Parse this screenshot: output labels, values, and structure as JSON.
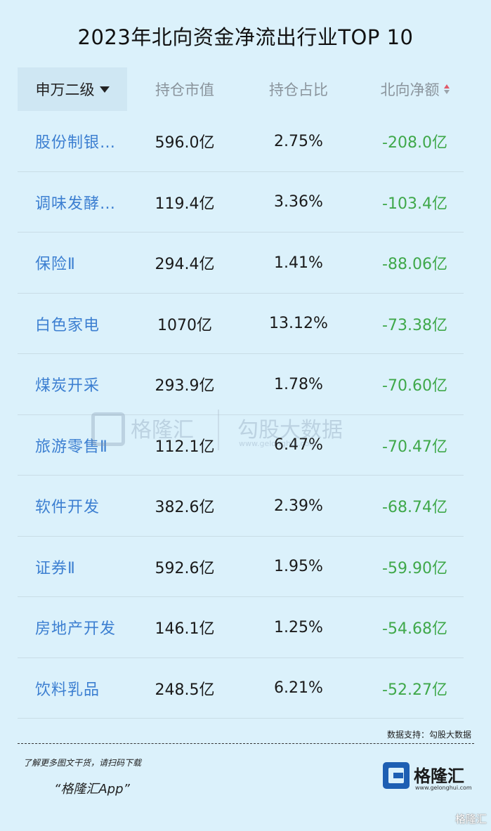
{
  "title": "2023年北向资金净流出行业TOP 10",
  "header": {
    "col1": "申万二级",
    "col2": "持仓市值",
    "col3": "持仓占比",
    "col4": "北向净额"
  },
  "rows": [
    {
      "industry": "股份制银…",
      "value": "596.0亿",
      "ratio": "2.75%",
      "net": "-208.0亿"
    },
    {
      "industry": "调味发酵…",
      "value": "119.4亿",
      "ratio": "3.36%",
      "net": "-103.4亿"
    },
    {
      "industry": "保险Ⅱ",
      "value": "294.4亿",
      "ratio": "1.41%",
      "net": "-88.06亿"
    },
    {
      "industry": "白色家电",
      "value": "1070亿",
      "ratio": "13.12%",
      "net": "-73.38亿"
    },
    {
      "industry": "煤炭开采",
      "value": "293.9亿",
      "ratio": "1.78%",
      "net": "-70.60亿"
    },
    {
      "industry": "旅游零售Ⅱ",
      "value": "112.1亿",
      "ratio": "6.47%",
      "net": "-70.47亿"
    },
    {
      "industry": "软件开发",
      "value": "382.6亿",
      "ratio": "2.39%",
      "net": "-68.74亿"
    },
    {
      "industry": "证券Ⅱ",
      "value": "592.6亿",
      "ratio": "1.95%",
      "net": "-59.90亿"
    },
    {
      "industry": "房地产开发",
      "value": "146.1亿",
      "ratio": "1.25%",
      "net": "-54.68亿"
    },
    {
      "industry": "饮料乳品",
      "value": "248.5亿",
      "ratio": "6.21%",
      "net": "-52.27亿"
    }
  ],
  "watermark": {
    "brand": "格隆汇",
    "product": "勾股大数据",
    "url": "www.gelonghui.com"
  },
  "footer": {
    "source": "数据支持：勾股大数据",
    "promo": "了解更多图文干货，请扫码下载",
    "app": "“格隆汇App”",
    "logo_text": "格隆汇",
    "logo_url": "www.gelonghui.com",
    "corner_mark": "格隆汇"
  },
  "colors": {
    "background": "#dbf1fb",
    "industry_link": "#3c7fd1",
    "net_outflow": "#3fa84a",
    "sort_up": "#e05a6a"
  },
  "icons": {
    "sort_dropdown": "triangle-down-icon",
    "sort_toggle": "sort-updown-icon",
    "logo": "g-logo-icon"
  }
}
